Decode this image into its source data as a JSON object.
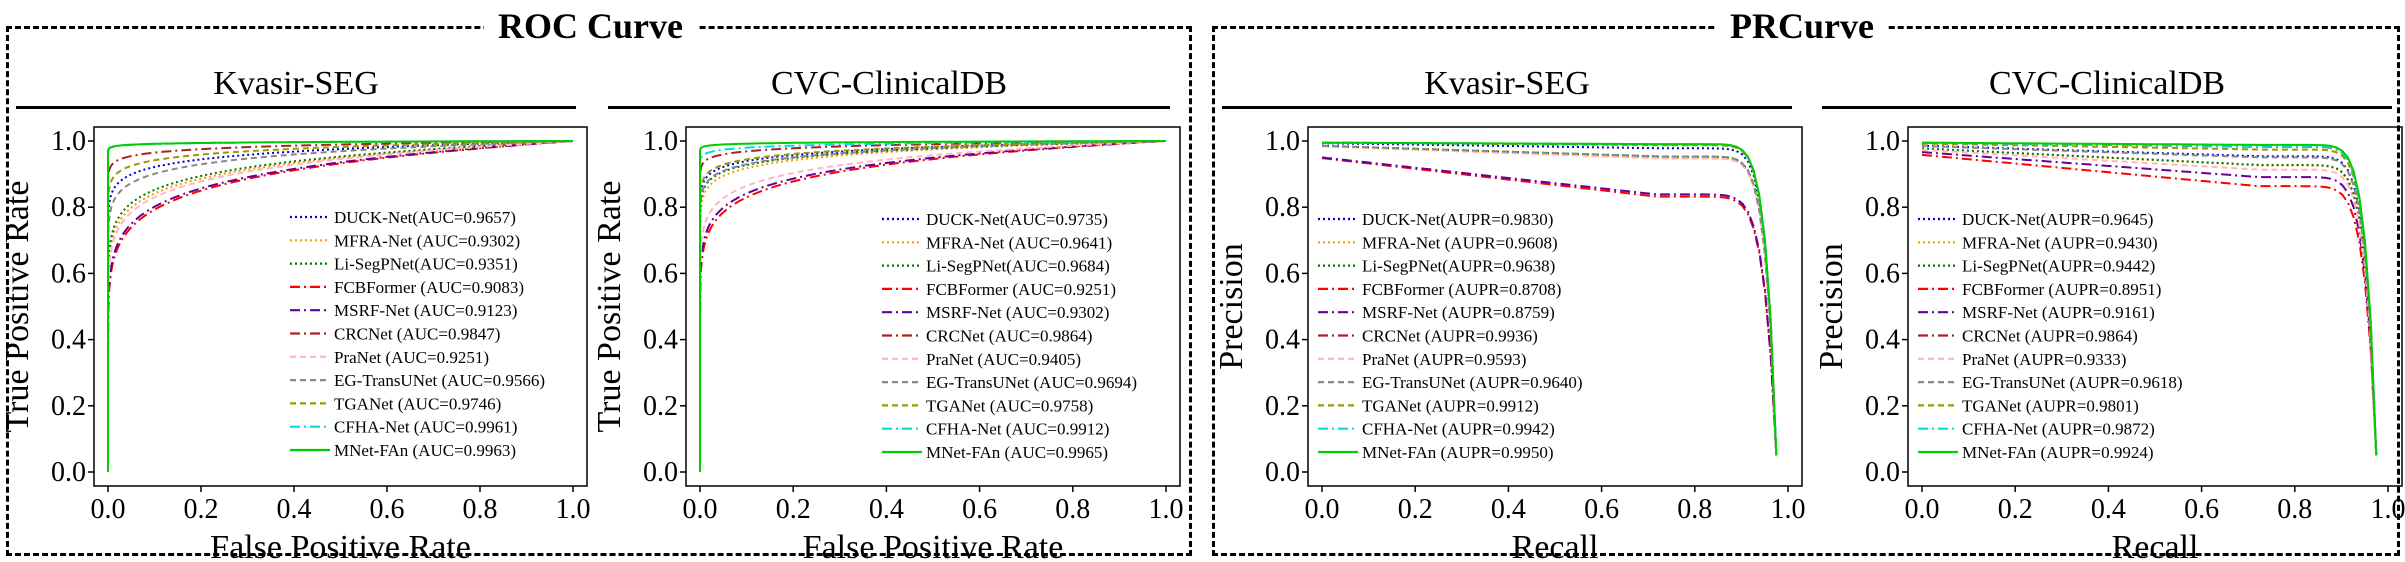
{
  "groups": [
    {
      "title": "ROC Curve"
    },
    {
      "title": "PRCurve"
    }
  ],
  "chart_data": [
    {
      "type": "line",
      "title": "Kvasir-SEG",
      "curve": "roc",
      "xlabel": "False Positive Rate",
      "ylabel": "True Positive Rate",
      "xlim": [
        0,
        1
      ],
      "ylim": [
        0,
        1
      ],
      "xticks": [
        "0.0",
        "0.2",
        "0.4",
        "0.6",
        "0.8",
        "1.0"
      ],
      "yticks": [
        "0.0",
        "0.2",
        "0.4",
        "0.6",
        "0.8",
        "1.0"
      ],
      "legend_position": "lower-right",
      "series": [
        {
          "name": "DUCK-Net(AUC=0.9657)",
          "color": "#0000cc",
          "dash": "2,3",
          "auc": 0.9657
        },
        {
          "name": "MFRA-Net (AUC=0.9302)",
          "color": "#ff9900",
          "dash": "2,3",
          "auc": 0.9302
        },
        {
          "name": "Li-SegPNet(AUC=0.9351)",
          "color": "#007700",
          "dash": "2,3",
          "auc": 0.9351
        },
        {
          "name": "FCBFormer (AUC=0.9083)",
          "color": "#ff0000",
          "dash": "10,4,2,4",
          "auc": 0.9083
        },
        {
          "name": "MSRF-Net (AUC=0.9123)",
          "color": "#660099",
          "dash": "10,4,2,4",
          "auc": 0.9123
        },
        {
          "name": "CRCNet (AUC=0.9847)",
          "color": "#aa2222",
          "dash": "10,4,2,4",
          "auc": 0.9847
        },
        {
          "name": "PraNet (AUC=0.9251)",
          "color": "#ffb6c1",
          "dash": "6,4",
          "auc": 0.9251
        },
        {
          "name": "EG-TransUNet (AUC=0.9566)",
          "color": "#888888",
          "dash": "6,4",
          "auc": 0.9566
        },
        {
          "name": "TGANet (AUC=0.9746)",
          "color": "#999900",
          "dash": "6,4",
          "auc": 0.9746
        },
        {
          "name": "CFHA-Net (AUC=0.9961)",
          "color": "#00dddd",
          "dash": "10,4,2,4",
          "auc": 0.9961
        },
        {
          "name": "MNet-FAn (AUC=0.9963)",
          "color": "#00cc00",
          "dash": "",
          "auc": 0.9963
        }
      ]
    },
    {
      "type": "line",
      "title": "CVC-ClinicalDB",
      "curve": "roc",
      "xlabel": "False Positive Rate",
      "ylabel": "True Positive Rate",
      "xlim": [
        0,
        1
      ],
      "ylim": [
        0,
        1
      ],
      "xticks": [
        "0.0",
        "0.2",
        "0.4",
        "0.6",
        "0.8",
        "1.0"
      ],
      "yticks": [
        "0.0",
        "0.2",
        "0.4",
        "0.6",
        "0.8",
        "1.0"
      ],
      "legend_position": "lower-right",
      "series": [
        {
          "name": "DUCK-Net(AUC=0.9735)",
          "color": "#0000cc",
          "dash": "2,3",
          "auc": 0.9735
        },
        {
          "name": "MFRA-Net (AUC=0.9641)",
          "color": "#ff9900",
          "dash": "2,3",
          "auc": 0.9641
        },
        {
          "name": "Li-SegPNet(AUC=0.9684)",
          "color": "#007700",
          "dash": "2,3",
          "auc": 0.9684
        },
        {
          "name": "FCBFormer (AUC=0.9251)",
          "color": "#ff0000",
          "dash": "10,4,2,4",
          "auc": 0.9251
        },
        {
          "name": "MSRF-Net (AUC=0.9302)",
          "color": "#660099",
          "dash": "10,4,2,4",
          "auc": 0.9302
        },
        {
          "name": "CRCNet (AUC=0.9864)",
          "color": "#aa2222",
          "dash": "10,4,2,4",
          "auc": 0.9864
        },
        {
          "name": "PraNet (AUC=0.9405)",
          "color": "#ffb6c1",
          "dash": "6,4",
          "auc": 0.9405
        },
        {
          "name": "EG-TransUNet (AUC=0.9694)",
          "color": "#888888",
          "dash": "6,4",
          "auc": 0.9694
        },
        {
          "name": "TGANet (AUC=0.9758)",
          "color": "#999900",
          "dash": "6,4",
          "auc": 0.9758
        },
        {
          "name": "CFHA-Net (AUC=0.9912)",
          "color": "#00dddd",
          "dash": "10,4,2,4",
          "auc": 0.9912
        },
        {
          "name": "MNet-FAn (AUC=0.9965)",
          "color": "#00cc00",
          "dash": "",
          "auc": 0.9965
        }
      ]
    },
    {
      "type": "line",
      "title": "Kvasir-SEG",
      "curve": "pr",
      "xlabel": "Recall",
      "ylabel": "Precision",
      "xlim": [
        0,
        1
      ],
      "ylim": [
        0,
        1
      ],
      "xticks": [
        "0.0",
        "0.2",
        "0.4",
        "0.6",
        "0.8",
        "1.0"
      ],
      "yticks": [
        "0.0",
        "0.2",
        "0.4",
        "0.6",
        "0.8",
        "1.0"
      ],
      "legend_position": "lower-left",
      "series": [
        {
          "name": "DUCK-Net(AUPR=0.9830)",
          "color": "#0000cc",
          "dash": "2,3",
          "auc": 0.983
        },
        {
          "name": "MFRA-Net (AUPR=0.9608)",
          "color": "#ff9900",
          "dash": "2,3",
          "auc": 0.9608
        },
        {
          "name": "Li-SegPNet(AUPR=0.9638)",
          "color": "#007700",
          "dash": "2,3",
          "auc": 0.9638
        },
        {
          "name": "FCBFormer (AUPR=0.8708)",
          "color": "#ff0000",
          "dash": "10,4,2,4",
          "auc": 0.8708
        },
        {
          "name": "MSRF-Net (AUPR=0.8759)",
          "color": "#660099",
          "dash": "10,4,2,4",
          "auc": 0.8759
        },
        {
          "name": "CRCNet (AUPR=0.9936)",
          "color": "#aa2222",
          "dash": "10,4,2,4",
          "auc": 0.9936
        },
        {
          "name": "PraNet (AUPR=0.9593)",
          "color": "#ffb6c1",
          "dash": "6,4",
          "auc": 0.9593
        },
        {
          "name": "EG-TransUNet (AUPR=0.9640)",
          "color": "#888888",
          "dash": "6,4",
          "auc": 0.964
        },
        {
          "name": "TGANet (AUPR=0.9912)",
          "color": "#999900",
          "dash": "6,4",
          "auc": 0.9912
        },
        {
          "name": "CFHA-Net (AUPR=0.9942)",
          "color": "#00dddd",
          "dash": "10,4,2,4",
          "auc": 0.9942
        },
        {
          "name": "MNet-FAn (AUPR=0.9950)",
          "color": "#00cc00",
          "dash": "",
          "auc": 0.995
        }
      ]
    },
    {
      "type": "line",
      "title": "CVC-ClinicalDB",
      "curve": "pr",
      "xlabel": "Recall",
      "ylabel": "Precision",
      "xlim": [
        0,
        1
      ],
      "ylim": [
        0,
        1
      ],
      "xticks": [
        "0.0",
        "0.2",
        "0.4",
        "0.6",
        "0.8",
        "1.0"
      ],
      "yticks": [
        "0.0",
        "0.2",
        "0.4",
        "0.6",
        "0.8",
        "1.0"
      ],
      "legend_position": "lower-left",
      "series": [
        {
          "name": "DUCK-Net(AUPR=0.9645)",
          "color": "#0000cc",
          "dash": "2,3",
          "auc": 0.9645
        },
        {
          "name": "MFRA-Net (AUPR=0.9430)",
          "color": "#ff9900",
          "dash": "2,3",
          "auc": 0.943
        },
        {
          "name": "Li-SegPNet(AUPR=0.9442)",
          "color": "#007700",
          "dash": "2,3",
          "auc": 0.9442
        },
        {
          "name": "FCBFormer (AUPR=0.8951)",
          "color": "#ff0000",
          "dash": "10,4,2,4",
          "auc": 0.8951
        },
        {
          "name": "MSRF-Net (AUPR=0.9161)",
          "color": "#660099",
          "dash": "10,4,2,4",
          "auc": 0.9161
        },
        {
          "name": "CRCNet (AUPR=0.9864)",
          "color": "#aa2222",
          "dash": "10,4,2,4",
          "auc": 0.9864
        },
        {
          "name": "PraNet (AUPR=0.9333)",
          "color": "#ffb6c1",
          "dash": "6,4",
          "auc": 0.9333
        },
        {
          "name": "EG-TransUNet (AUPR=0.9618)",
          "color": "#888888",
          "dash": "6,4",
          "auc": 0.9618
        },
        {
          "name": "TGANet (AUPR=0.9801)",
          "color": "#999900",
          "dash": "6,4",
          "auc": 0.9801
        },
        {
          "name": "CFHA-Net (AUPR=0.9872)",
          "color": "#00dddd",
          "dash": "10,4,2,4",
          "auc": 0.9872
        },
        {
          "name": "MNet-FAn (AUPR=0.9924)",
          "color": "#00cc00",
          "dash": "",
          "auc": 0.9924
        }
      ]
    }
  ]
}
